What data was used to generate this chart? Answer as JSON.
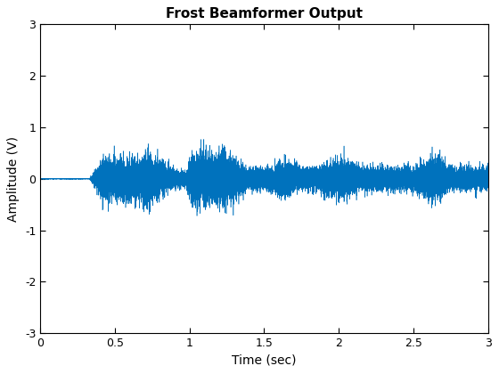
{
  "title": "Frost Beamformer Output",
  "xlabel": "Time (sec)",
  "ylabel": "Amplitude (V)",
  "xlim": [
    0,
    3
  ],
  "ylim": [
    -3,
    3
  ],
  "xticks": [
    0,
    0.5,
    1,
    1.5,
    2,
    2.5,
    3
  ],
  "yticks": [
    -3,
    -2,
    -1,
    0,
    1,
    2,
    3
  ],
  "line_color": "#0072BD",
  "line_width": 0.4,
  "background_color": "#FFFFFF",
  "sample_rate": 8000,
  "duration": 3.0,
  "seed": 7
}
